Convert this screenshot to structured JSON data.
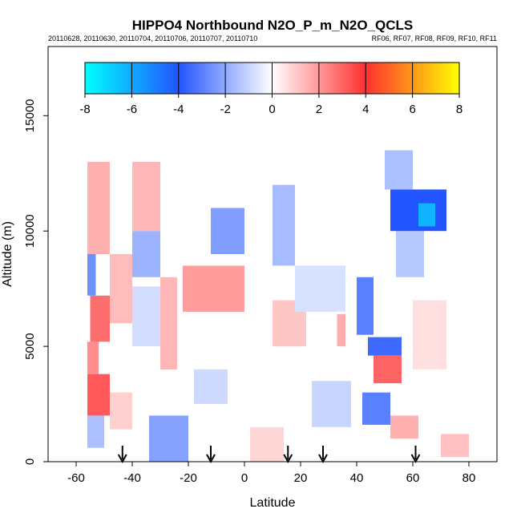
{
  "chart_data": {
    "type": "heatmap",
    "title": "HIPPO4 Northbound N2O_P_m_N2O_QCLS",
    "subtitle_left": "20110628, 20110630, 20110704, 20110706, 20110707, 20110710",
    "subtitle_right": "RF06, RF07, RF08, RF09, RF10, RF11",
    "xlabel": "Latitude",
    "ylabel": "Altitude (m)",
    "xlim": [
      -70,
      90
    ],
    "ylim": [
      0,
      18000
    ],
    "x_ticks": [
      -60,
      -40,
      -20,
      0,
      20,
      40,
      60,
      80
    ],
    "y_ticks": [
      0,
      5000,
      10000,
      15000
    ],
    "colorbar": {
      "range": [
        -8,
        8
      ],
      "ticks": [
        -8,
        -6,
        -4,
        -2,
        0,
        2,
        4,
        6,
        8
      ],
      "colors": [
        "#00ffff",
        "#2255ff",
        "#ffffff",
        "#ff3030",
        "#ffff00"
      ]
    },
    "arrows_latitude": [
      -43.5,
      -12,
      15.5,
      28,
      61
    ],
    "cells": [
      {
        "lat": [
          -56,
          -50
        ],
        "alt": [
          600,
          2000
        ],
        "value": -1.5
      },
      {
        "lat": [
          -56,
          -48
        ],
        "alt": [
          2000,
          3800
        ],
        "value": 3.2
      },
      {
        "lat": [
          -56,
          -52
        ],
        "alt": [
          3800,
          5200
        ],
        "value": 2.2
      },
      {
        "lat": [
          -55,
          -48
        ],
        "alt": [
          5200,
          7200
        ],
        "value": 2.8
      },
      {
        "lat": [
          -56,
          -53
        ],
        "alt": [
          7200,
          9000
        ],
        "value": -2.6
      },
      {
        "lat": [
          -56,
          -48
        ],
        "alt": [
          9000,
          13000
        ],
        "value": 1.5
      },
      {
        "lat": [
          -48,
          -40
        ],
        "alt": [
          1400,
          3000
        ],
        "value": 0.9
      },
      {
        "lat": [
          -48,
          -40
        ],
        "alt": [
          6000,
          9000
        ],
        "value": 1.3
      },
      {
        "lat": [
          -40,
          -30
        ],
        "alt": [
          8000,
          10000
        ],
        "value": -1.8
      },
      {
        "lat": [
          -40,
          -30
        ],
        "alt": [
          10000,
          13000
        ],
        "value": 1.4
      },
      {
        "lat": [
          -40,
          -28
        ],
        "alt": [
          5000,
          7600
        ],
        "value": -0.8
      },
      {
        "lat": [
          -34,
          -20
        ],
        "alt": [
          0,
          2000
        ],
        "value": -2.2
      },
      {
        "lat": [
          -30,
          -24
        ],
        "alt": [
          4000,
          8000
        ],
        "value": 1.4
      },
      {
        "lat": [
          -22,
          0
        ],
        "alt": [
          6500,
          8500
        ],
        "value": 1.9
      },
      {
        "lat": [
          -12,
          0
        ],
        "alt": [
          9000,
          11000
        ],
        "value": -2.3
      },
      {
        "lat": [
          -18,
          -6
        ],
        "alt": [
          2500,
          4000
        ],
        "value": -0.9
      },
      {
        "lat": [
          2,
          14
        ],
        "alt": [
          0,
          1500
        ],
        "value": 0.8
      },
      {
        "lat": [
          10,
          18
        ],
        "alt": [
          8500,
          12000
        ],
        "value": -1.6
      },
      {
        "lat": [
          10,
          22
        ],
        "alt": [
          5000,
          7000
        ],
        "value": 1.1
      },
      {
        "lat": [
          18,
          36
        ],
        "alt": [
          6500,
          8500
        ],
        "value": -0.7
      },
      {
        "lat": [
          24,
          38
        ],
        "alt": [
          1500,
          3500
        ],
        "value": -1.0
      },
      {
        "lat": [
          33,
          36
        ],
        "alt": [
          5000,
          6400
        ],
        "value": 1.6
      },
      {
        "lat": [
          40,
          46
        ],
        "alt": [
          5500,
          8000
        ],
        "value": -3.0
      },
      {
        "lat": [
          44,
          56
        ],
        "alt": [
          4600,
          5400
        ],
        "value": -3.5
      },
      {
        "lat": [
          46,
          56
        ],
        "alt": [
          3400,
          4600
        ],
        "value": 3.0
      },
      {
        "lat": [
          42,
          52
        ],
        "alt": [
          1600,
          3000
        ],
        "value": -3.0
      },
      {
        "lat": [
          52,
          62
        ],
        "alt": [
          1000,
          2000
        ],
        "value": 1.5
      },
      {
        "lat": [
          54,
          64
        ],
        "alt": [
          8000,
          10000
        ],
        "value": -1.3
      },
      {
        "lat": [
          52,
          72
        ],
        "alt": [
          10000,
          11800
        ],
        "value": -4.0
      },
      {
        "lat": [
          50,
          60
        ],
        "alt": [
          11800,
          13500
        ],
        "value": -1.5
      },
      {
        "lat": [
          62,
          68
        ],
        "alt": [
          10200,
          11200
        ],
        "value": -6.2
      },
      {
        "lat": [
          60,
          72
        ],
        "alt": [
          4000,
          7000
        ],
        "value": 0.6
      },
      {
        "lat": [
          70,
          80
        ],
        "alt": [
          200,
          1200
        ],
        "value": 1.2
      }
    ]
  }
}
